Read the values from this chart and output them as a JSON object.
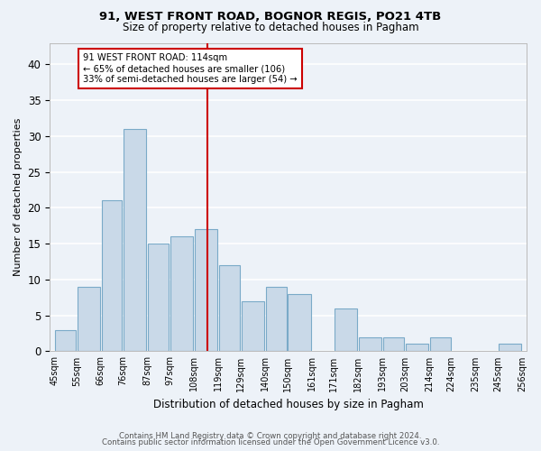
{
  "title1": "91, WEST FRONT ROAD, BOGNOR REGIS, PO21 4TB",
  "title2": "Size of property relative to detached houses in Pagham",
  "xlabel": "Distribution of detached houses by size in Pagham",
  "ylabel": "Number of detached properties",
  "bar_color": "#c9d9e8",
  "bar_edge_color": "#7aaac8",
  "bins": [
    45,
    55,
    66,
    76,
    87,
    97,
    108,
    119,
    129,
    140,
    150,
    161,
    171,
    182,
    193,
    203,
    214,
    224,
    235,
    245,
    256
  ],
  "counts": [
    3,
    9,
    21,
    31,
    15,
    16,
    17,
    12,
    7,
    9,
    8,
    0,
    6,
    2,
    2,
    1,
    2,
    0,
    0,
    1
  ],
  "tick_labels": [
    "45sqm",
    "55sqm",
    "66sqm",
    "76sqm",
    "87sqm",
    "97sqm",
    "108sqm",
    "119sqm",
    "129sqm",
    "140sqm",
    "150sqm",
    "161sqm",
    "171sqm",
    "182sqm",
    "193sqm",
    "203sqm",
    "214sqm",
    "224sqm",
    "235sqm",
    "245sqm",
    "256sqm"
  ],
  "property_line_x": 114,
  "annotation_line1": "91 WEST FRONT ROAD: 114sqm",
  "annotation_line2": "← 65% of detached houses are smaller (106)",
  "annotation_line3": "33% of semi-detached houses are larger (54) →",
  "footer1": "Contains HM Land Registry data © Crown copyright and database right 2024.",
  "footer2": "Contains public sector information licensed under the Open Government Licence v3.0.",
  "ylim": [
    0,
    43
  ],
  "yticks": [
    0,
    5,
    10,
    15,
    20,
    25,
    30,
    35,
    40
  ],
  "bg_color": "#edf2f8",
  "grid_color": "#ffffff",
  "annotation_box_color": "#ffffff",
  "annotation_box_edge_color": "#cc0000",
  "line_color": "#cc0000",
  "title1_fontsize": 9.5,
  "title2_fontsize": 8.5
}
